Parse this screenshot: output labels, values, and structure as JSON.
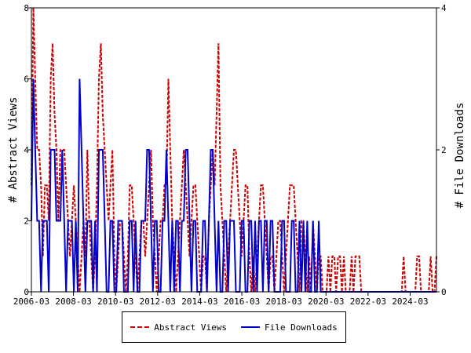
{
  "chart_data": {
    "type": "line",
    "title": "",
    "xlabel": "",
    "ylabel": "# Abstract Views",
    "y2label": "# File Downloads",
    "x_tick_labels": [
      "2006-03",
      "2008-03",
      "2010-03",
      "2012-03",
      "2014-03",
      "2016-03",
      "2018-03",
      "2020-03",
      "2022-03",
      "2024-03"
    ],
    "y_ticks": [
      "0",
      "2",
      "4",
      "6",
      "8"
    ],
    "y2_ticks": [
      "0",
      "2",
      "4"
    ],
    "ylim": [
      0,
      8
    ],
    "y2lim": [
      0,
      4
    ],
    "x_range": [
      "2006-03",
      "2025-06"
    ],
    "legend_position": "bottom",
    "grid": false,
    "series": [
      {
        "name": "Abstract Views",
        "axis": "left",
        "color": "#cc0000",
        "style": "dashed",
        "values": [
          3,
          8,
          6,
          4,
          4,
          3,
          1,
          3,
          3,
          2,
          6,
          7,
          5,
          4,
          2,
          4,
          4,
          4,
          3,
          2,
          1,
          2,
          3,
          2,
          1,
          0,
          1,
          2,
          1,
          4,
          2,
          1,
          0,
          1,
          3,
          6,
          7,
          5,
          4,
          3,
          2,
          3,
          4,
          1,
          0,
          1,
          2,
          2,
          1,
          0,
          1,
          3,
          3,
          2,
          1,
          0,
          1,
          2,
          2,
          1,
          2,
          3,
          4,
          2,
          1,
          0,
          1,
          2,
          2,
          3,
          3,
          6,
          4,
          2,
          1,
          0,
          1,
          2,
          3,
          4,
          3,
          2,
          1,
          2,
          3,
          3,
          2,
          1,
          0,
          1,
          1,
          0,
          2,
          3,
          4,
          3,
          5,
          7,
          3,
          2,
          1,
          0,
          1,
          2,
          3,
          4,
          4,
          3,
          2,
          1,
          2,
          3,
          3,
          1,
          0,
          1,
          0,
          1,
          2,
          3,
          3,
          2,
          1,
          0,
          1,
          1,
          0,
          1,
          2,
          2,
          1,
          0,
          1,
          2,
          3,
          3,
          3,
          2,
          1,
          0,
          2,
          2,
          1,
          0,
          1,
          0,
          2,
          1,
          0,
          1,
          1,
          0,
          0,
          0,
          1,
          0,
          1,
          1,
          0,
          1,
          1,
          0,
          1,
          0,
          0,
          0,
          1,
          0,
          1,
          1,
          1,
          0,
          0,
          0,
          0,
          0,
          0,
          0,
          0,
          0,
          0,
          0,
          0,
          0,
          0,
          0,
          0,
          0,
          0,
          0,
          0,
          0,
          0,
          1,
          0,
          0,
          0,
          0,
          0,
          0,
          1,
          1,
          0,
          0,
          0,
          0,
          0,
          1,
          0,
          0,
          1
        ]
      },
      {
        "name": "File Downloads",
        "axis": "right",
        "color": "#0000cc",
        "style": "solid",
        "values": [
          1,
          3,
          2,
          1,
          1,
          0,
          1,
          1,
          1,
          0,
          2,
          2,
          2,
          1,
          1,
          1,
          2,
          1,
          0,
          1,
          1,
          1,
          0,
          1,
          0,
          3,
          2,
          1,
          0,
          1,
          1,
          1,
          0,
          1,
          0,
          2,
          2,
          2,
          1,
          0,
          0,
          1,
          1,
          0,
          0,
          1,
          1,
          1,
          0,
          0,
          0,
          1,
          1,
          0,
          1,
          0,
          0,
          1,
          1,
          1,
          2,
          2,
          1,
          0,
          1,
          1,
          0,
          0,
          1,
          1,
          2,
          1,
          0,
          1,
          0,
          1,
          1,
          0,
          1,
          1,
          2,
          2,
          1,
          0,
          1,
          1,
          0,
          0,
          0,
          1,
          1,
          0,
          1,
          2,
          2,
          1,
          0,
          1,
          0,
          0,
          1,
          1,
          0,
          1,
          1,
          1,
          0,
          0,
          0,
          1,
          1,
          0,
          0,
          1,
          1,
          0,
          1,
          0,
          1,
          1,
          0,
          1,
          1,
          0,
          1,
          1,
          0,
          0,
          0,
          0,
          1,
          1,
          0,
          0,
          0,
          1,
          1,
          0,
          0,
          1,
          0,
          1,
          0,
          1,
          0,
          0,
          1,
          0,
          0,
          1,
          0,
          0,
          0,
          0,
          0,
          0,
          0,
          0,
          0,
          0,
          0,
          0,
          0,
          0,
          0,
          0,
          0,
          0,
          0,
          0,
          0,
          0,
          0,
          0,
          0,
          0,
          0,
          0,
          0,
          0,
          0,
          0,
          0,
          0,
          0,
          0,
          0,
          0,
          0,
          0,
          0,
          0,
          0,
          0,
          0,
          0,
          0,
          0,
          0,
          0,
          0,
          0,
          0,
          0,
          0,
          0,
          0,
          0,
          0,
          0,
          0
        ]
      }
    ]
  },
  "legend": {
    "views_label": "Abstract Views",
    "downloads_label": "File Downloads"
  }
}
